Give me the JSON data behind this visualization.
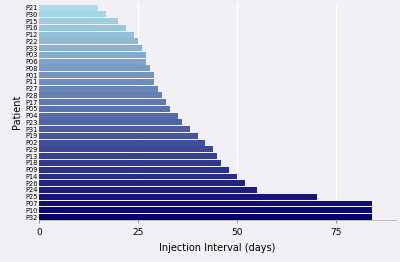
{
  "patients": [
    "P32",
    "P10",
    "P07",
    "P25",
    "P24",
    "P26",
    "P14",
    "P09",
    "P18",
    "P13",
    "P29",
    "P02",
    "P19",
    "P31",
    "P23",
    "P04",
    "P05",
    "P17",
    "P28",
    "P27",
    "P11",
    "P01",
    "P08",
    "P06",
    "P03",
    "P33",
    "P22",
    "P12",
    "P16",
    "P15",
    "P30",
    "P21"
  ],
  "values": [
    84,
    84,
    84,
    70,
    55,
    52,
    50,
    48,
    46,
    45,
    44,
    42,
    40,
    38,
    36,
    35,
    33,
    32,
    31,
    30,
    29,
    29,
    28,
    27,
    27,
    26,
    25,
    24,
    22,
    20,
    17,
    15
  ],
  "xlabel": "Injection Interval (days)",
  "ylabel": "Patient",
  "background_color": "#f0f0f5",
  "color_top": "#08006d",
  "color_bottom": "#a8dce8",
  "xticks": [
    0,
    25,
    50,
    75
  ],
  "xlim_max": 90
}
